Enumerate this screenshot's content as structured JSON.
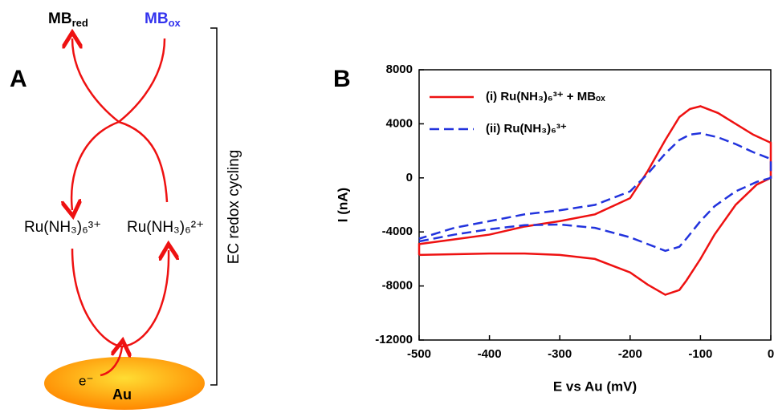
{
  "diagram": {
    "panel_label": "A",
    "mb_red": {
      "base": "MB",
      "sub": "red"
    },
    "mb_ox": {
      "base": "MB",
      "sub": "ox"
    },
    "ru3": "Ru(NH₃)₆³⁺",
    "ru2": "Ru(NH₃)₆²⁺",
    "electron": "e⁻",
    "electrode": "Au",
    "bracket_label": "EC redox cycling"
  },
  "chart_data": {
    "type": "line",
    "panel_label": "B",
    "xlabel": "E vs Au (mV)",
    "ylabel": "I (nA)",
    "xlim": [
      -500,
      0
    ],
    "ylim": [
      -12000,
      8000
    ],
    "xticks": [
      -500,
      -400,
      -300,
      -200,
      -100,
      0
    ],
    "yticks": [
      -12000,
      -8000,
      -4000,
      0,
      4000,
      8000
    ],
    "series": [
      {
        "name": "(i) Ru(NH₃)₆³⁺ + MBₒₓ",
        "color": "#ee1111",
        "dash": false,
        "x": [
          -500,
          -450,
          -400,
          -350,
          -300,
          -250,
          -200,
          -175,
          -150,
          -130,
          -120,
          -100,
          -80,
          -50,
          -20,
          0,
          0,
          -25,
          -50,
          -75,
          -100,
          -115,
          -130,
          -150,
          -175,
          -200,
          -250,
          -300,
          -350,
          -400,
          -450,
          -500,
          -500
        ],
        "values": [
          -5700,
          -5650,
          -5600,
          -5600,
          -5700,
          -6000,
          -7000,
          -7900,
          -8650,
          -8300,
          -7600,
          -6000,
          -4200,
          -2000,
          -500,
          0,
          2600,
          3200,
          4000,
          4800,
          5300,
          5100,
          4500,
          2800,
          500,
          -1500,
          -2700,
          -3200,
          -3600,
          -4200,
          -4550,
          -4900,
          -5700
        ]
      },
      {
        "name": "(ii) Ru(NH₃)₆³⁺",
        "color": "#2233dd",
        "dash": true,
        "x": [
          -500,
          -450,
          -400,
          -350,
          -300,
          -250,
          -200,
          -175,
          -150,
          -130,
          -120,
          -100,
          -80,
          -50,
          -20,
          0,
          0,
          -25,
          -50,
          -75,
          -100,
          -115,
          -130,
          -150,
          -175,
          -200,
          -250,
          -300,
          -350,
          -400,
          -450,
          -500
        ],
        "values": [
          -4700,
          -4200,
          -3800,
          -3500,
          -3450,
          -3700,
          -4400,
          -4900,
          -5400,
          -5100,
          -4500,
          -3200,
          -2100,
          -1000,
          -300,
          0,
          1400,
          1900,
          2500,
          3000,
          3300,
          3200,
          2800,
          1800,
          300,
          -1000,
          -2000,
          -2400,
          -2700,
          -3200,
          -3700,
          -4500
        ]
      }
    ]
  }
}
